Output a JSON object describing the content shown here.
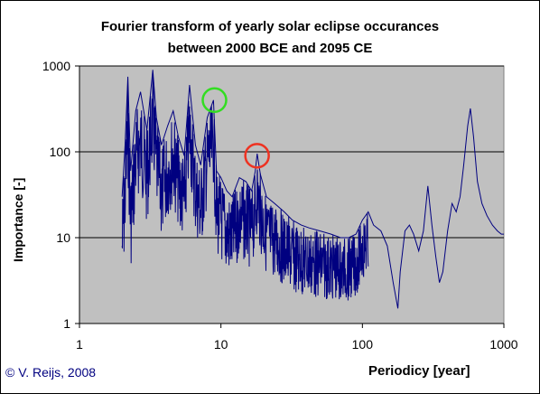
{
  "chart_data": {
    "type": "line",
    "title_lines": [
      "Fourier transform of yearly solar eclipse occurances",
      "between 2000 BCE and 2095 CE"
    ],
    "xlabel": "Periodicy [year]",
    "ylabel": "Importance [-]",
    "x_scale": "log",
    "y_scale": "log",
    "xlim": [
      1,
      1000
    ],
    "ylim": [
      1,
      1000
    ],
    "x_ticks": [
      "1",
      "10",
      "100",
      "1000"
    ],
    "y_ticks": [
      "1",
      "10",
      "100",
      "1000"
    ],
    "grid": "horizontal",
    "series": [
      {
        "color": "#000080",
        "x": [
          2.0,
          2.1,
          2.2,
          2.3,
          2.5,
          2.7,
          3.0,
          3.3,
          3.5,
          3.8,
          4.2,
          4.6,
          5.0,
          5.5,
          6.0,
          6.6,
          7.2,
          8.0,
          8.85,
          9.3,
          10.0,
          11.0,
          12.0,
          13.5,
          15.0,
          16.5,
          17.5,
          18.03,
          19.0,
          21.0,
          24.0,
          28.0,
          32.0,
          37.0,
          42.0,
          50.0,
          60.0,
          70.0,
          80.0,
          90.0,
          100.0,
          110.0,
          120.0,
          135.0,
          150.0,
          165.0,
          178.0,
          185.0,
          200.0,
          215.0,
          230.0,
          250.0,
          270.0,
          290.0,
          310.0,
          330.0,
          350.0,
          370.0,
          400.0,
          430.0,
          460.0,
          490.0,
          520.0,
          555.0,
          580.0,
          610.0,
          650.0,
          700.0,
          760.0,
          830.0,
          900.0,
          960.0,
          1000.0
        ],
        "y": [
          30,
          120,
          750,
          60,
          300,
          500,
          180,
          900,
          250,
          120,
          200,
          300,
          150,
          90,
          600,
          120,
          70,
          250,
          400,
          60,
          50,
          35,
          30,
          50,
          45,
          35,
          60,
          95,
          55,
          30,
          25,
          20,
          16,
          14,
          13,
          12,
          11,
          10,
          10,
          11,
          16,
          20,
          14,
          12,
          8,
          3,
          1.5,
          4,
          12,
          14,
          11,
          7,
          12,
          40,
          14,
          6,
          3,
          4,
          12,
          25,
          20,
          30,
          70,
          200,
          320,
          150,
          45,
          25,
          18,
          14,
          12,
          11,
          11
        ]
      }
    ],
    "annotations": [
      {
        "shape": "circle",
        "color": "#33dd22",
        "x": 9.0,
        "y": 400
      },
      {
        "shape": "circle",
        "color": "#ee3322",
        "x": 18.0,
        "y": 90
      }
    ]
  },
  "copyright": "© V. Reijs, 2008",
  "colors": {
    "plot_bg": "#c0c0c0",
    "line": "#000080",
    "grid": "#000000"
  }
}
